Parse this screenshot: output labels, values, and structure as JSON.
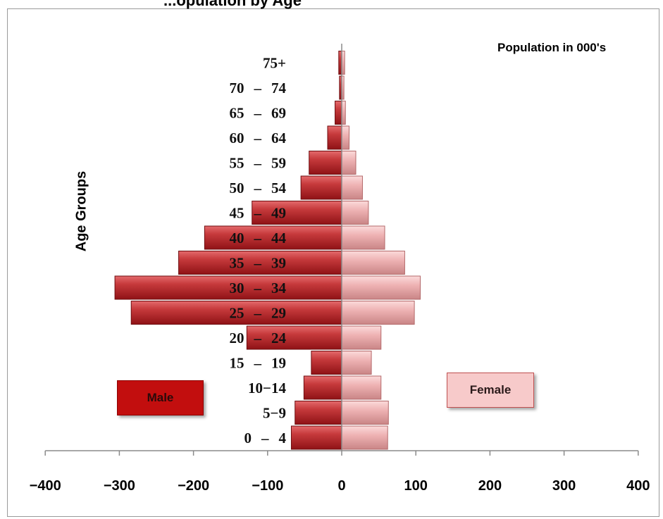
{
  "chart_data": {
    "type": "bar",
    "orientation": "horizontal",
    "title": "...opulation by Age",
    "unit_note": "Population in 000's",
    "ylabel": "Age Groups",
    "xlabel": "",
    "xlim": [
      -400,
      400
    ],
    "x_ticks": [
      "−400",
      "−300",
      "−200",
      "−100",
      "0",
      "100",
      "200",
      "300",
      "400"
    ],
    "x_tick_values": [
      -400,
      -300,
      -200,
      -100,
      0,
      100,
      200,
      300,
      400
    ],
    "grid": false,
    "categories": [
      {
        "id": "0-4",
        "parts": [
          "0",
          "–",
          "4"
        ]
      },
      {
        "id": "5-9",
        "parts": [
          "5−9"
        ]
      },
      {
        "id": "10-14",
        "parts": [
          "10−14"
        ]
      },
      {
        "id": "15-19",
        "parts": [
          "15",
          "–",
          "19"
        ]
      },
      {
        "id": "20-24",
        "parts": [
          "20",
          "–",
          "24"
        ]
      },
      {
        "id": "25-29",
        "parts": [
          "25",
          "–",
          "29"
        ]
      },
      {
        "id": "30-34",
        "parts": [
          "30",
          "–",
          "34"
        ]
      },
      {
        "id": "35-39",
        "parts": [
          "35",
          "–",
          "39"
        ]
      },
      {
        "id": "40-44",
        "parts": [
          "40",
          "–",
          "44"
        ]
      },
      {
        "id": "45-49",
        "parts": [
          "45",
          "–",
          "49"
        ]
      },
      {
        "id": "50-54",
        "parts": [
          "50",
          "–",
          "54"
        ]
      },
      {
        "id": "55-59",
        "parts": [
          "55",
          "–",
          "59"
        ]
      },
      {
        "id": "60-64",
        "parts": [
          "60",
          "–",
          "64"
        ]
      },
      {
        "id": "65-69",
        "parts": [
          "65",
          "–",
          "69"
        ]
      },
      {
        "id": "70-74",
        "parts": [
          "70",
          "–",
          "74"
        ]
      },
      {
        "id": "75+",
        "parts": [
          "75+"
        ]
      }
    ],
    "series": [
      {
        "name": "Male",
        "color": "#c0282b",
        "values": [
          -68,
          -63,
          -51,
          -41,
          -128,
          -284,
          -306,
          -220,
          -185,
          -121,
          -55,
          -44,
          -19,
          -9,
          -3,
          -4
        ]
      },
      {
        "name": "Female",
        "color": "#e8a5a6",
        "values": [
          62,
          63,
          53,
          40,
          53,
          98,
          106,
          85,
          58,
          36,
          28,
          19,
          10,
          5,
          3,
          4
        ]
      }
    ],
    "legend": {
      "male_label": "Male",
      "female_label": "Female",
      "placement": "bottom-left and bottom-right"
    }
  }
}
